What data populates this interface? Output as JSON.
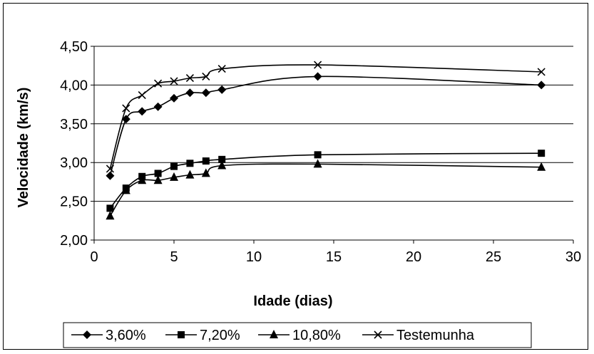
{
  "chart_data": {
    "type": "line",
    "title": "",
    "xlabel": "Idade (dias)",
    "ylabel": "Velocidade (km/s)",
    "xlim": [
      0,
      30
    ],
    "ylim": [
      2.0,
      4.5
    ],
    "x_ticks": [
      0,
      5,
      10,
      15,
      20,
      25,
      30
    ],
    "x_tick_labels": [
      "0",
      "5",
      "10",
      "15",
      "20",
      "25",
      "30"
    ],
    "y_ticks": [
      2.0,
      2.5,
      3.0,
      3.5,
      4.0,
      4.5
    ],
    "y_tick_labels": [
      "2,00",
      "2,50",
      "3,00",
      "3,50",
      "4,00",
      "4,50"
    ],
    "grid": "horizontal",
    "legend_position": "bottom",
    "line_color": "#000000",
    "x": [
      1,
      2,
      3,
      4,
      5,
      6,
      7,
      8,
      14,
      28
    ],
    "series": [
      {
        "name": "3,60%",
        "marker": "diamond",
        "values": [
          2.83,
          3.56,
          3.66,
          3.72,
          3.83,
          3.9,
          3.9,
          3.94,
          4.11,
          4.0
        ]
      },
      {
        "name": "7,20%",
        "marker": "square",
        "values": [
          2.41,
          2.67,
          2.82,
          2.86,
          2.95,
          2.99,
          3.02,
          3.04,
          3.1,
          3.12
        ]
      },
      {
        "name": "10,80%",
        "marker": "triangle",
        "values": [
          2.31,
          2.64,
          2.77,
          2.77,
          2.81,
          2.84,
          2.86,
          2.96,
          2.98,
          2.94
        ]
      },
      {
        "name": "Testemunha",
        "marker": "x",
        "values": [
          2.92,
          3.7,
          3.87,
          4.02,
          4.05,
          4.09,
          4.11,
          4.21,
          4.26,
          4.17
        ]
      }
    ]
  }
}
